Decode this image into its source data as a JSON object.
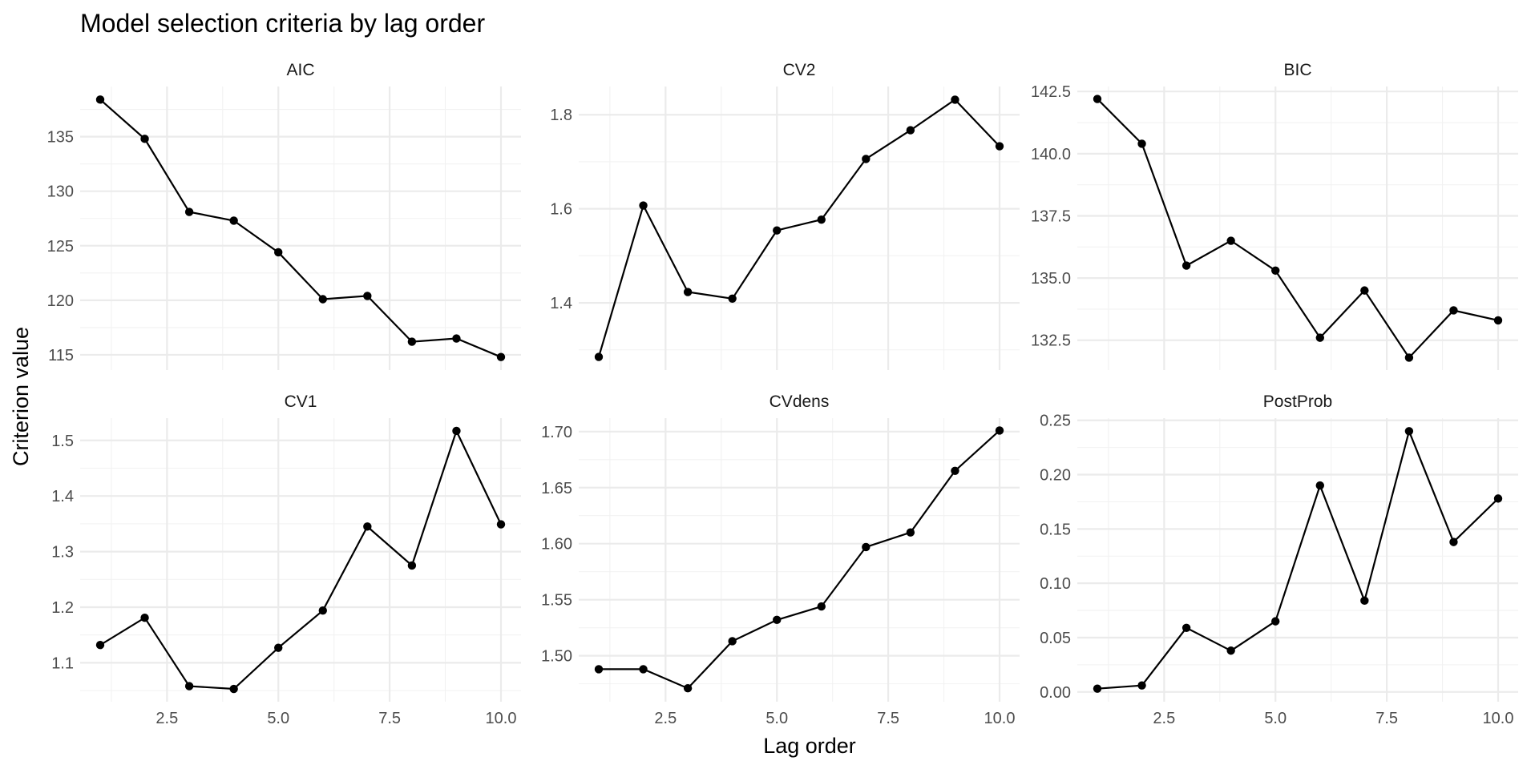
{
  "chart_data": {
    "type": "line",
    "title": "Model selection criteria by lag order",
    "xlabel": "Lag order",
    "ylabel": "Criterion value",
    "facet_layout": {
      "rows": 2,
      "cols": 3,
      "scales": "free_y"
    },
    "grid": true,
    "legend": "none",
    "colors": {
      "line": "#000000",
      "point": "#000000",
      "grid_major": "#ebebeb",
      "grid_minor": "#f2f2f2"
    },
    "x": [
      1,
      2,
      3,
      4,
      5,
      6,
      7,
      8,
      9,
      10
    ],
    "xlim": [
      0.55,
      10.45
    ],
    "x_ticks": [
      2.5,
      5.0,
      7.5,
      10.0
    ],
    "x_tick_labels": [
      "2.5",
      "5.0",
      "7.5",
      "10.0"
    ],
    "panels": [
      {
        "name": "AIC",
        "values": [
          138.4,
          134.8,
          128.1,
          127.3,
          124.4,
          120.1,
          120.4,
          116.2,
          116.5,
          114.8
        ],
        "ylim": [
          113.6,
          139.6
        ],
        "y_ticks": [
          115,
          120,
          125,
          130,
          135
        ],
        "y_tick_labels": [
          "115",
          "120",
          "125",
          "130",
          "135"
        ]
      },
      {
        "name": "CV2",
        "values": [
          1.285,
          1.607,
          1.423,
          1.409,
          1.554,
          1.577,
          1.706,
          1.767,
          1.832,
          1.733
        ],
        "ylim": [
          1.257,
          1.86
        ],
        "y_ticks": [
          1.4,
          1.6,
          1.8
        ],
        "y_tick_labels": [
          "1.4",
          "1.6",
          "1.8"
        ]
      },
      {
        "name": "BIC",
        "values": [
          142.2,
          140.4,
          135.5,
          136.5,
          135.3,
          132.6,
          134.5,
          131.8,
          133.7,
          133.3
        ],
        "ylim": [
          131.3,
          142.7
        ],
        "y_ticks": [
          132.5,
          135.0,
          137.5,
          140.0,
          142.5
        ],
        "y_tick_labels": [
          "132.5",
          "135.0",
          "137.5",
          "140.0",
          "142.5"
        ]
      },
      {
        "name": "CV1",
        "values": [
          1.132,
          1.181,
          1.058,
          1.053,
          1.127,
          1.194,
          1.345,
          1.275,
          1.517,
          1.349
        ],
        "ylim": [
          1.03,
          1.54
        ],
        "y_ticks": [
          1.1,
          1.2,
          1.3,
          1.4,
          1.5
        ],
        "y_tick_labels": [
          "1.1",
          "1.2",
          "1.3",
          "1.4",
          "1.5"
        ]
      },
      {
        "name": "CVdens",
        "values": [
          1.488,
          1.488,
          1.471,
          1.513,
          1.532,
          1.544,
          1.597,
          1.61,
          1.665,
          1.701
        ],
        "ylim": [
          1.459,
          1.712
        ],
        "y_ticks": [
          1.5,
          1.55,
          1.6,
          1.65,
          1.7
        ],
        "y_tick_labels": [
          "1.50",
          "1.55",
          "1.60",
          "1.65",
          "1.70"
        ]
      },
      {
        "name": "PostProb",
        "values": [
          0.003,
          0.006,
          0.059,
          0.038,
          0.065,
          0.19,
          0.084,
          0.24,
          0.138,
          0.178
        ],
        "ylim": [
          -0.009,
          0.252
        ],
        "y_ticks": [
          0.0,
          0.05,
          0.1,
          0.15,
          0.2,
          0.25
        ],
        "y_tick_labels": [
          "0.00",
          "0.05",
          "0.10",
          "0.15",
          "0.20",
          "0.25"
        ]
      }
    ]
  }
}
